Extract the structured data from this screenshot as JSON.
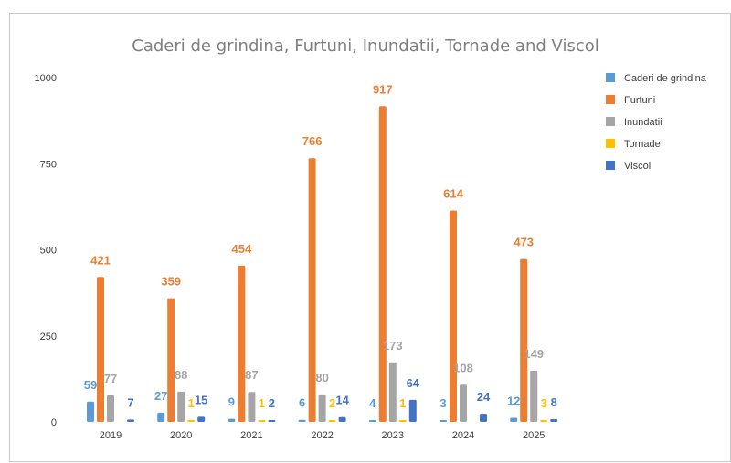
{
  "chart_data": {
    "type": "bar",
    "title": "Caderi de grindina, Furtuni, Inundatii, Tornade and Viscol",
    "xlabel": "",
    "ylabel": "",
    "ylim": [
      0,
      1000
    ],
    "yticks": [
      0,
      250,
      500,
      750,
      1000
    ],
    "categories": [
      "2019",
      "2020",
      "2021",
      "2022",
      "2023",
      "2024",
      "2025"
    ],
    "legend_position": "right",
    "grid": false,
    "series": [
      {
        "name": "Caderi de grindina",
        "color": "#5b9bd5",
        "values": [
          59,
          27,
          9,
          6,
          4,
          3,
          12
        ],
        "labels": [
          "59",
          "27",
          "9",
          "6",
          "4",
          "3",
          "12"
        ]
      },
      {
        "name": "Furtuni",
        "color": "#ed7d31",
        "values": [
          421,
          359,
          454,
          766,
          917,
          614,
          473
        ],
        "labels": [
          "421",
          "359",
          "454",
          "766",
          "917",
          "614",
          "473"
        ]
      },
      {
        "name": "Inundatii",
        "color": "#a5a5a5",
        "values": [
          77,
          88,
          87,
          80,
          173,
          108,
          149
        ],
        "labels": [
          "77",
          "88",
          "87",
          "80",
          "173",
          "108",
          "149"
        ]
      },
      {
        "name": "Tornade",
        "color": "#ffc000",
        "values": [
          0,
          1,
          1,
          2,
          1,
          0,
          3
        ],
        "labels": [
          "",
          "1",
          "1",
          "2",
          "1",
          "",
          "3"
        ]
      },
      {
        "name": "Viscol",
        "color": "#4472c4",
        "values": [
          7,
          15,
          2,
          14,
          64,
          24,
          8
        ],
        "labels": [
          "7",
          "15",
          "2",
          "14",
          "64",
          "24",
          "8"
        ]
      }
    ]
  }
}
